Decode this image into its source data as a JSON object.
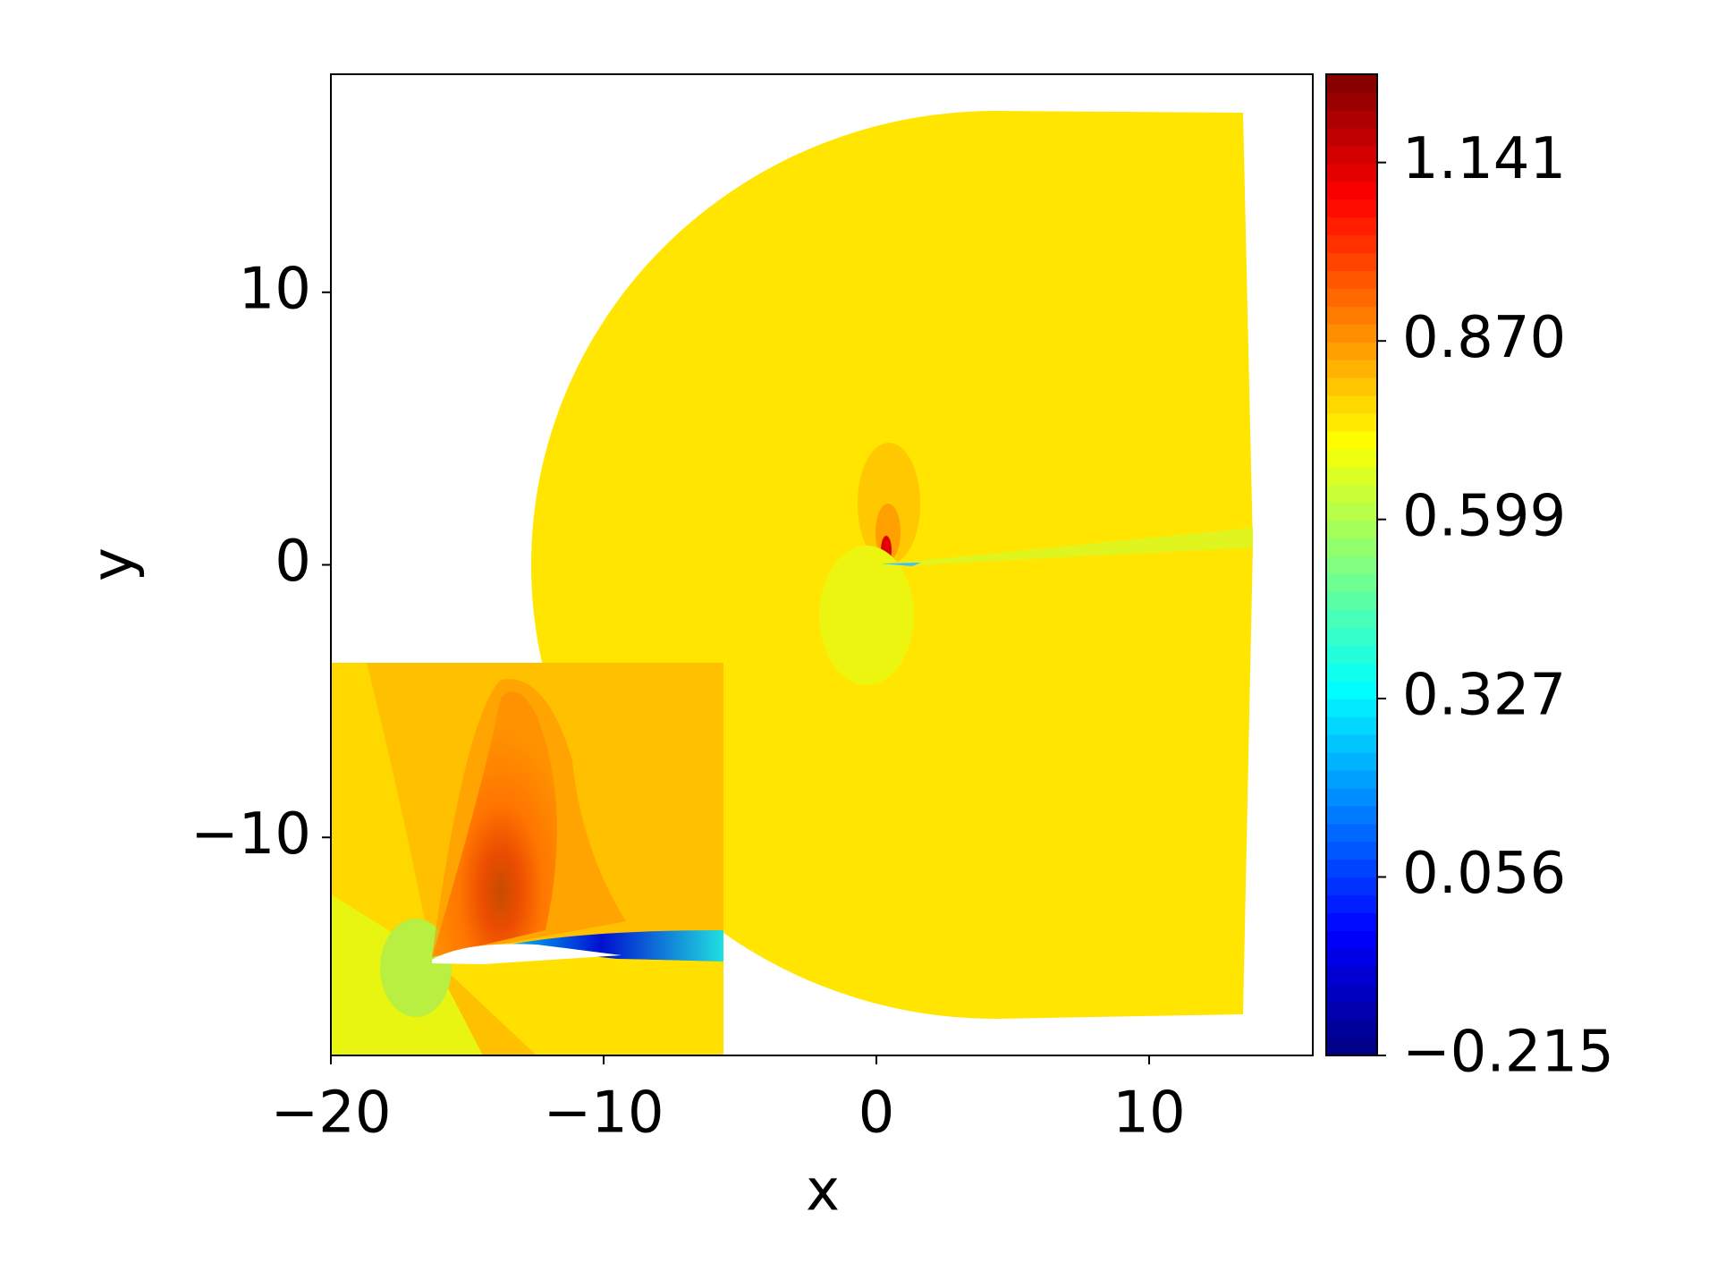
{
  "chart_data": {
    "type": "contour",
    "x_label": "x",
    "y_label": "y",
    "xlim": [
      -20,
      16
    ],
    "ylim": [
      -18,
      18
    ],
    "xticks": [
      {
        "value": -20,
        "label": "−20"
      },
      {
        "value": -10,
        "label": "−10"
      },
      0,
      10
    ],
    "yticks": [
      {
        "value": -10,
        "label": "−10"
      },
      0,
      10
    ],
    "colormap": "jet",
    "clim": [
      -0.215,
      1.275
    ],
    "cticks": [
      {
        "value": -0.215,
        "label": "−0.215"
      },
      0.056,
      0.327,
      0.599,
      {
        "value": 0.87,
        "label": "0.870"
      },
      1.141
    ]
  }
}
